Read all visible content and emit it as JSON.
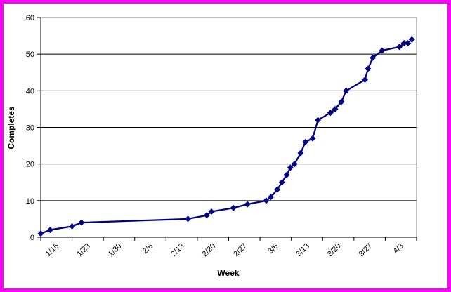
{
  "frame": {
    "border_color": "#FF00FF",
    "background": "#FFFFFF"
  },
  "chart_data": {
    "type": "line",
    "title": "",
    "xlabel": "Week",
    "ylabel": "Completes",
    "categories": [
      "1/16",
      "1/23",
      "1/30",
      "2/6",
      "2/13",
      "2/20",
      "2/27",
      "3/6",
      "3/13",
      "3/20",
      "3/27",
      "4/3"
    ],
    "y_ticks": [
      0,
      10,
      20,
      30,
      40,
      50,
      60
    ],
    "ylim": [
      0,
      60
    ],
    "x_weeks": 12,
    "grid": "horizontal-major",
    "legend": "none",
    "axis_color": "#000000",
    "plot_border_color": "#808080",
    "gridline_color": "#000000",
    "series": [
      {
        "name": "Completes",
        "color": "#000080",
        "marker": "diamond",
        "points": [
          [
            0.0,
            1
          ],
          [
            0.3,
            2
          ],
          [
            1.0,
            3
          ],
          [
            1.3,
            4
          ],
          [
            4.7,
            5
          ],
          [
            5.3,
            6
          ],
          [
            5.45,
            7
          ],
          [
            6.15,
            8
          ],
          [
            6.6,
            9
          ],
          [
            7.2,
            10
          ],
          [
            7.35,
            11
          ],
          [
            7.55,
            13
          ],
          [
            7.7,
            15
          ],
          [
            7.85,
            17
          ],
          [
            7.97,
            19
          ],
          [
            8.1,
            20
          ],
          [
            8.3,
            23
          ],
          [
            8.45,
            26
          ],
          [
            8.68,
            27
          ],
          [
            8.85,
            32
          ],
          [
            9.25,
            34
          ],
          [
            9.4,
            35
          ],
          [
            9.6,
            37
          ],
          [
            9.75,
            40
          ],
          [
            10.35,
            43
          ],
          [
            10.45,
            46
          ],
          [
            10.6,
            49
          ],
          [
            10.9,
            51
          ],
          [
            11.45,
            52
          ],
          [
            11.6,
            53
          ],
          [
            11.72,
            53
          ],
          [
            11.85,
            54
          ]
        ]
      }
    ]
  }
}
